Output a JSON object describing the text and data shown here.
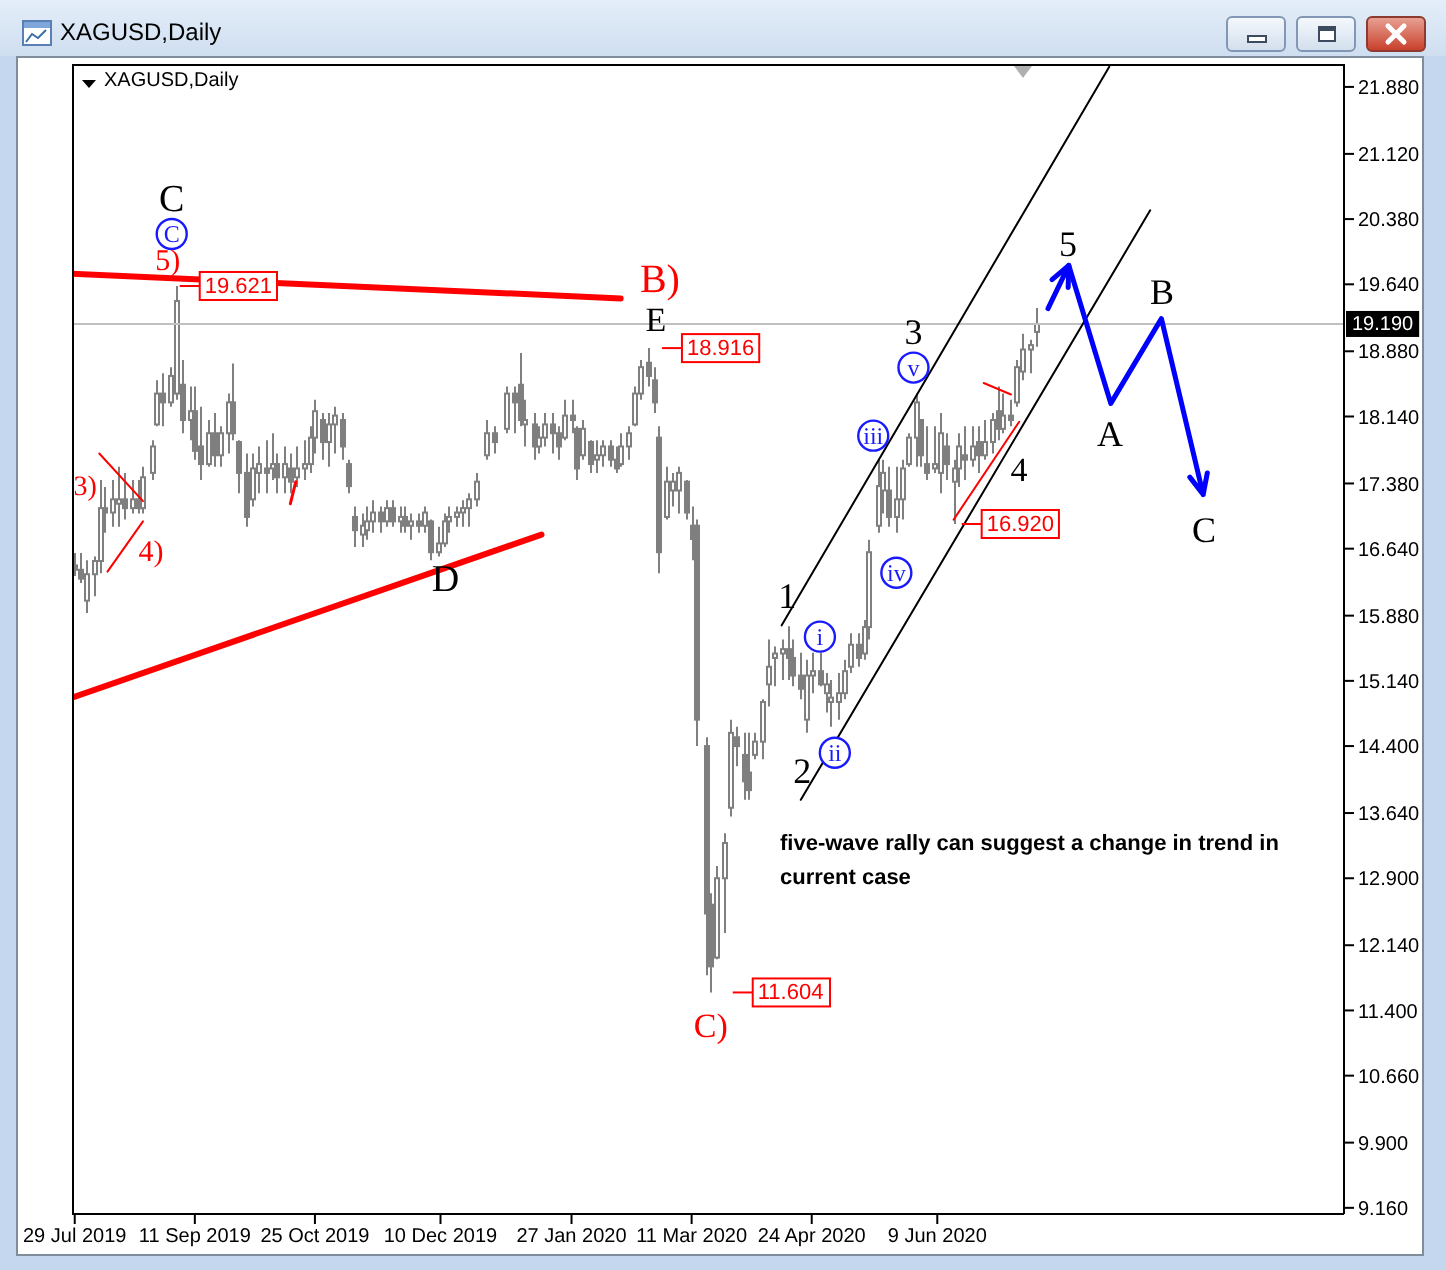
{
  "chart_data": {
    "type": "candlestick",
    "title": "XAGUSD,Daily",
    "subtitle": "XAGUSD,Daily",
    "color": "#7f7f7f",
    "x": [
      "2019-07-29",
      "2019-07-31",
      "2019-08-02",
      "2019-08-05",
      "2019-08-07",
      "2019-08-09",
      "2019-08-12",
      "2019-08-14",
      "2019-08-16",
      "2019-08-19",
      "2019-08-21",
      "2019-08-23",
      "2019-08-26",
      "2019-08-28",
      "2019-08-30",
      "2019-09-02",
      "2019-09-04",
      "2019-09-06",
      "2019-09-09",
      "2019-09-11",
      "2019-09-13",
      "2019-09-16",
      "2019-09-18",
      "2019-09-20",
      "2019-09-23",
      "2019-09-25",
      "2019-09-27",
      "2019-09-30",
      "2019-10-02",
      "2019-10-04",
      "2019-10-07",
      "2019-10-09",
      "2019-10-11",
      "2019-10-14",
      "2019-10-16",
      "2019-10-18",
      "2019-10-21",
      "2019-10-23",
      "2019-10-25",
      "2019-10-28",
      "2019-10-30",
      "2019-11-01",
      "2019-11-04",
      "2019-11-06",
      "2019-11-08",
      "2019-11-11",
      "2019-11-13",
      "2019-11-15",
      "2019-11-18",
      "2019-11-20",
      "2019-11-22",
      "2019-11-25",
      "2019-11-27",
      "2019-11-29",
      "2019-12-02",
      "2019-12-04",
      "2019-12-06",
      "2019-12-09",
      "2019-12-11",
      "2019-12-13",
      "2019-12-16",
      "2019-12-18",
      "2019-12-20",
      "2019-12-23",
      "2019-12-27",
      "2019-12-30",
      "2020-01-03",
      "2020-01-06",
      "2020-01-08",
      "2020-01-10",
      "2020-01-13",
      "2020-01-15",
      "2020-01-17",
      "2020-01-20",
      "2020-01-22",
      "2020-01-24",
      "2020-01-27",
      "2020-01-29",
      "2020-01-31",
      "2020-02-03",
      "2020-02-05",
      "2020-02-07",
      "2020-02-10",
      "2020-02-12",
      "2020-02-14",
      "2020-02-17",
      "2020-02-19",
      "2020-02-21",
      "2020-02-24",
      "2020-02-26",
      "2020-02-28",
      "2020-03-02",
      "2020-03-04",
      "2020-03-06",
      "2020-03-09",
      "2020-03-11",
      "2020-03-13",
      "2020-03-16",
      "2020-03-18",
      "2020-03-20",
      "2020-03-23",
      "2020-03-25",
      "2020-03-27",
      "2020-03-30",
      "2020-04-01",
      "2020-04-03",
      "2020-04-06",
      "2020-04-08",
      "2020-04-10",
      "2020-04-13",
      "2020-04-15",
      "2020-04-17",
      "2020-04-20",
      "2020-04-22",
      "2020-04-24",
      "2020-04-27",
      "2020-04-29",
      "2020-05-01",
      "2020-05-04",
      "2020-05-06",
      "2020-05-08",
      "2020-05-11",
      "2020-05-13",
      "2020-05-15",
      "2020-05-18",
      "2020-05-20",
      "2020-05-22",
      "2020-05-25",
      "2020-05-27",
      "2020-05-29",
      "2020-06-01",
      "2020-06-03",
      "2020-06-05",
      "2020-06-08",
      "2020-06-10",
      "2020-06-12",
      "2020-06-15",
      "2020-06-17",
      "2020-06-19",
      "2020-06-22",
      "2020-06-24",
      "2020-06-26",
      "2020-06-29",
      "2020-07-01",
      "2020-07-03",
      "2020-07-06",
      "2020-07-08",
      "2020-07-10",
      "2020-07-13",
      "2020-07-15"
    ],
    "ohlc": [
      [
        16.45,
        16.59,
        16.33,
        16.4
      ],
      [
        16.4,
        16.59,
        16.25,
        16.3
      ],
      [
        16.05,
        16.51,
        15.91,
        16.35
      ],
      [
        16.35,
        16.55,
        16.1,
        16.5
      ],
      [
        16.5,
        17.42,
        16.36,
        17.1
      ],
      [
        17.1,
        17.34,
        16.82,
        17.05
      ],
      [
        17.05,
        17.42,
        16.89,
        17.2
      ],
      [
        17.15,
        17.57,
        16.89,
        17.2
      ],
      [
        17.2,
        17.5,
        16.97,
        17.1
      ],
      [
        17.1,
        17.42,
        17.04,
        17.2
      ],
      [
        17.2,
        17.42,
        17.04,
        17.1
      ],
      [
        17.1,
        17.57,
        17.04,
        17.45
      ],
      [
        17.5,
        17.87,
        17.42,
        17.8
      ],
      [
        18.05,
        18.55,
        18.03,
        18.4
      ],
      [
        18.4,
        18.63,
        18.03,
        18.3
      ],
      [
        18.3,
        18.7,
        18.25,
        18.6
      ],
      [
        18.4,
        19.621,
        18.33,
        19.45
      ],
      [
        18.5,
        18.78,
        17.95,
        18.1
      ],
      [
        18.1,
        18.48,
        17.87,
        18.2
      ],
      [
        18.2,
        18.48,
        17.65,
        17.75
      ],
      [
        17.8,
        18.25,
        17.42,
        17.6
      ],
      [
        17.6,
        18.1,
        17.57,
        17.95
      ],
      [
        17.95,
        18.18,
        17.57,
        17.7
      ],
      [
        17.7,
        18.03,
        17.57,
        17.95
      ],
      [
        17.95,
        18.4,
        17.72,
        18.3
      ],
      [
        18.3,
        18.74,
        17.87,
        17.95
      ],
      [
        17.85,
        17.87,
        17.27,
        17.5
      ],
      [
        17.5,
        17.72,
        16.89,
        17.0
      ],
      [
        17.2,
        17.72,
        17.12,
        17.55
      ],
      [
        17.5,
        17.8,
        17.27,
        17.6
      ],
      [
        17.55,
        17.87,
        17.27,
        17.5
      ],
      [
        17.55,
        17.95,
        17.42,
        17.6
      ],
      [
        17.6,
        17.72,
        17.27,
        17.45
      ],
      [
        17.45,
        17.8,
        17.27,
        17.6
      ],
      [
        17.55,
        17.72,
        17.27,
        17.4
      ],
      [
        17.45,
        17.8,
        17.34,
        17.55
      ],
      [
        17.55,
        17.87,
        17.42,
        17.6
      ],
      [
        17.6,
        18.03,
        17.5,
        17.9
      ],
      [
        17.9,
        18.33,
        17.72,
        18.2
      ],
      [
        18.1,
        18.18,
        17.65,
        17.85
      ],
      [
        17.85,
        18.18,
        17.57,
        18.05
      ],
      [
        18.05,
        18.25,
        17.72,
        18.15
      ],
      [
        18.1,
        18.18,
        17.65,
        17.8
      ],
      [
        17.6,
        17.65,
        17.27,
        17.35
      ],
      [
        17.0,
        17.12,
        16.66,
        16.85
      ],
      [
        16.8,
        17.04,
        16.66,
        16.9
      ],
      [
        16.85,
        17.12,
        16.74,
        16.95
      ],
      [
        16.95,
        17.19,
        16.82,
        17.05
      ],
      [
        17.05,
        17.12,
        16.82,
        16.95
      ],
      [
        16.95,
        17.19,
        16.89,
        17.1
      ],
      [
        17.1,
        17.19,
        16.89,
        16.95
      ],
      [
        16.95,
        17.12,
        16.82,
        17.0
      ],
      [
        17.0,
        17.12,
        16.82,
        16.9
      ],
      [
        16.9,
        17.04,
        16.74,
        16.95
      ],
      [
        16.95,
        17.04,
        16.82,
        16.9
      ],
      [
        16.9,
        17.12,
        16.82,
        17.05
      ],
      [
        16.95,
        16.97,
        16.51,
        16.6
      ],
      [
        16.6,
        16.89,
        16.55,
        16.7
      ],
      [
        16.7,
        17.04,
        16.66,
        16.95
      ],
      [
        16.95,
        17.12,
        16.82,
        17.0
      ],
      [
        17.0,
        17.12,
        16.89,
        17.05
      ],
      [
        17.05,
        17.19,
        16.89,
        17.1
      ],
      [
        17.1,
        17.27,
        16.89,
        17.2
      ],
      [
        17.2,
        17.5,
        17.12,
        17.4
      ],
      [
        17.7,
        18.1,
        17.65,
        17.95
      ],
      [
        17.95,
        18.03,
        17.72,
        17.85
      ],
      [
        18.0,
        18.48,
        17.95,
        18.4
      ],
      [
        18.4,
        18.48,
        17.95,
        18.3
      ],
      [
        18.5,
        18.86,
        18.03,
        18.1
      ],
      [
        18.05,
        18.33,
        17.8,
        18.1
      ],
      [
        18.05,
        18.18,
        17.65,
        17.8
      ],
      [
        17.8,
        18.03,
        17.72,
        17.9
      ],
      [
        17.9,
        18.18,
        17.8,
        18.05
      ],
      [
        18.05,
        18.18,
        17.72,
        17.95
      ],
      [
        17.95,
        18.03,
        17.65,
        17.8
      ],
      [
        17.9,
        18.33,
        17.87,
        18.15
      ],
      [
        18.15,
        18.33,
        17.95,
        18.1
      ],
      [
        18.0,
        18.03,
        17.42,
        17.55
      ],
      [
        17.7,
        18.1,
        17.65,
        18.0
      ],
      [
        17.85,
        17.87,
        17.5,
        17.6
      ],
      [
        17.65,
        17.87,
        17.5,
        17.7
      ],
      [
        17.7,
        17.87,
        17.57,
        17.8
      ],
      [
        17.8,
        17.87,
        17.57,
        17.65
      ],
      [
        17.65,
        17.8,
        17.5,
        17.55
      ],
      [
        17.6,
        17.95,
        17.57,
        17.8
      ],
      [
        17.8,
        18.03,
        17.65,
        17.95
      ],
      [
        18.05,
        18.48,
        18.03,
        18.4
      ],
      [
        18.4,
        18.78,
        18.33,
        18.7
      ],
      [
        18.75,
        18.916,
        18.48,
        18.6
      ],
      [
        18.55,
        18.7,
        18.18,
        18.3
      ],
      [
        17.9,
        18.03,
        16.36,
        16.6
      ],
      [
        17.0,
        17.57,
        16.97,
        17.4
      ],
      [
        17.3,
        17.5,
        17.12,
        17.4
      ],
      [
        17.3,
        17.57,
        17.04,
        17.5
      ],
      [
        17.4,
        17.42,
        16.97,
        17.05
      ],
      [
        16.9,
        17.12,
        16.51,
        16.75
      ],
      [
        16.9,
        16.97,
        14.4,
        14.7
      ],
      [
        14.4,
        14.5,
        11.8,
        12.5
      ],
      [
        12.6,
        12.73,
        11.604,
        11.9
      ],
      [
        12.0,
        13.04,
        11.98,
        12.9
      ],
      [
        12.9,
        13.41,
        12.28,
        13.3
      ],
      [
        13.7,
        14.7,
        13.6,
        14.55
      ],
      [
        14.5,
        14.62,
        14.17,
        14.4
      ],
      [
        14.3,
        14.55,
        13.79,
        14.0
      ],
      [
        14.1,
        14.55,
        13.79,
        13.9
      ],
      [
        14.3,
        14.55,
        14.25,
        14.45
      ],
      [
        14.45,
        14.93,
        14.25,
        14.9
      ],
      [
        15.1,
        15.61,
        14.85,
        15.3
      ],
      [
        15.4,
        15.53,
        15.08,
        15.45
      ],
      [
        15.45,
        15.61,
        15.15,
        15.5
      ],
      [
        15.5,
        15.76,
        15.15,
        15.4
      ],
      [
        15.4,
        15.61,
        15.08,
        15.2
      ],
      [
        15.2,
        15.46,
        14.93,
        15.05
      ],
      [
        14.7,
        15.38,
        14.55,
        15.2
      ],
      [
        15.2,
        15.46,
        15.0,
        15.25
      ],
      [
        15.25,
        15.46,
        15.08,
        15.1
      ],
      [
        15.0,
        15.23,
        14.78,
        15.1
      ],
      [
        14.9,
        15.15,
        14.62,
        14.95
      ],
      [
        14.9,
        15.23,
        14.7,
        15.0
      ],
      [
        15.0,
        15.38,
        14.93,
        15.25
      ],
      [
        15.3,
        15.68,
        15.23,
        15.55
      ],
      [
        15.55,
        15.68,
        15.3,
        15.4
      ],
      [
        15.45,
        15.83,
        15.38,
        15.75
      ],
      [
        15.75,
        16.74,
        15.61,
        16.6
      ],
      [
        16.9,
        17.65,
        16.82,
        17.35
      ],
      [
        17.3,
        17.65,
        17.04,
        17.5
      ],
      [
        17.3,
        17.57,
        16.89,
        17.0
      ],
      [
        17.0,
        17.57,
        16.82,
        17.2
      ],
      [
        17.2,
        17.65,
        16.97,
        17.55
      ],
      [
        17.6,
        17.95,
        17.57,
        17.9
      ],
      [
        17.9,
        18.4,
        17.57,
        18.3
      ],
      [
        18.1,
        18.1,
        17.57,
        17.7
      ],
      [
        17.6,
        18.03,
        17.42,
        17.5
      ],
      [
        17.55,
        18.03,
        17.5,
        17.6
      ],
      [
        17.5,
        18.18,
        17.27,
        17.95
      ],
      [
        17.8,
        17.95,
        17.42,
        17.6
      ],
      [
        17.4,
        17.65,
        16.92,
        17.55
      ],
      [
        17.55,
        17.95,
        17.34,
        17.8
      ],
      [
        17.7,
        18.03,
        17.42,
        17.65
      ],
      [
        17.65,
        18.03,
        17.57,
        17.8
      ],
      [
        17.85,
        18.03,
        17.5,
        17.7
      ],
      [
        17.7,
        18.1,
        17.65,
        17.85
      ],
      [
        17.85,
        18.18,
        17.72,
        18.1
      ],
      [
        18.2,
        18.48,
        17.87,
        18.0
      ],
      [
        18.0,
        18.4,
        17.95,
        18.15
      ],
      [
        18.15,
        18.33,
        18.03,
        18.1
      ],
      [
        18.3,
        18.78,
        18.25,
        18.7
      ],
      [
        18.65,
        19.08,
        18.55,
        18.9
      ],
      [
        18.9,
        19.01,
        18.63,
        18.95
      ],
      [
        19.1,
        19.37,
        18.93,
        19.19
      ]
    ],
    "series": [
      {
        "type": "line",
        "color": "#ff0000",
        "x": [
          "2019-07-28",
          "2020-02-14"
        ],
        "values": [
          19.76,
          19.48
        ]
      },
      {
        "type": "line",
        "color": "#ff0000",
        "x": [
          "2019-07-28",
          "2020-01-16"
        ],
        "values": [
          14.95,
          16.8
        ]
      },
      {
        "type": "line",
        "color": "#ff0000",
        "x": [
          "2019-08-07",
          "2019-08-23"
        ],
        "values": [
          17.72,
          17.18
        ]
      },
      {
        "type": "line",
        "color": "#ff0000",
        "x": [
          "2019-08-10",
          "2019-08-23"
        ],
        "values": [
          16.38,
          16.95
        ]
      },
      {
        "type": "line",
        "color": "#ff0000",
        "x": [
          "2019-10-16",
          "2019-10-18"
        ],
        "values": [
          17.15,
          17.4
        ]
      },
      {
        "type": "line",
        "color": "#000000",
        "x": [
          "2020-04-13",
          "2020-08-11"
        ],
        "values": [
          15.77,
          22.11
        ]
      },
      {
        "type": "line",
        "color": "#000000",
        "x": [
          "2020-04-20",
          "2020-08-26"
        ],
        "values": [
          13.79,
          20.48
        ]
      },
      {
        "type": "line",
        "color": "#ff0000",
        "x": [
          "2020-06-15",
          "2020-07-09"
        ],
        "values": [
          16.97,
          18.08
        ]
      },
      {
        "type": "line",
        "color": "#ff0000",
        "x": [
          "2020-06-26",
          "2020-07-06"
        ],
        "values": [
          18.52,
          18.39
        ]
      }
    ],
    "annotations": [
      {
        "text": "C",
        "x": "2019-09-04",
        "y": 19.621
      },
      {
        "text": "C",
        "x": "2019-09-04",
        "y": 19.621
      },
      {
        "text": "5)",
        "x": "2019-09-04",
        "y": 19.621
      },
      {
        "text": "19.621",
        "x": "2019-09-04",
        "y": 19.621
      },
      {
        "text": "3)",
        "x": "2019-08-07",
        "y": 17.42
      },
      {
        "text": "4)",
        "x": "2019-08-23",
        "y": 17.04
      },
      {
        "text": "D",
        "x": "2019-12-06",
        "y": 16.51
      },
      {
        "text": "B)",
        "x": "2020-02-24",
        "y": 18.916
      },
      {
        "text": "E",
        "x": "2020-02-24",
        "y": 18.916
      },
      {
        "text": "18.916",
        "x": "2020-02-24",
        "y": 18.916
      },
      {
        "text": "C)",
        "x": "2020-03-18",
        "y": 11.604
      },
      {
        "text": "11.604",
        "x": "2020-03-18",
        "y": 11.604
      },
      {
        "text": "1",
        "x": "2020-04-15",
        "y": 15.76
      },
      {
        "text": "i",
        "x": "2020-04-27",
        "y": 15.46
      },
      {
        "text": "2",
        "x": "2020-04-22",
        "y": 14.55
      },
      {
        "text": "ii",
        "x": "2020-05-01",
        "y": 14.62
      },
      {
        "text": "iii",
        "x": "2020-05-18",
        "y": 17.65
      },
      {
        "text": "iv",
        "x": "2020-05-25",
        "y": 16.82
      },
      {
        "text": "3",
        "x": "2020-06-01",
        "y": 18.4
      },
      {
        "text": "v",
        "x": "2020-06-01",
        "y": 18.4
      },
      {
        "text": "4",
        "x": "2020-07-06",
        "y": 18.03
      },
      {
        "text": "16.920",
        "x": "2020-06-15",
        "y": 16.92
      },
      "5",
      "A",
      "B",
      "C",
      "five-wave rally can suggest a change in trend in current case"
    ],
    "ref_lines": [
      {
        "axis": "y",
        "value": 19.19,
        "label": "19.190",
        "color": "#c0c0c0"
      }
    ],
    "xlim": [
      "2019-07-28",
      "2020-11-05"
    ],
    "xticks": [
      {
        "value": "2019-07-29",
        "label": "29 Jul 2019"
      },
      {
        "value": "2019-09-11",
        "label": "11 Sep 2019"
      },
      {
        "value": "2019-10-25",
        "label": "25 Oct 2019"
      },
      {
        "value": "2019-12-10",
        "label": "10 Dec 2019"
      },
      {
        "value": "2020-01-27",
        "label": "27 Jan 2020"
      },
      {
        "value": "2020-03-11",
        "label": "11 Mar 2020"
      },
      {
        "value": "2020-04-24",
        "label": "24 Apr 2020"
      },
      {
        "value": "2020-06-09",
        "label": "9 Jun 2020"
      }
    ],
    "ylim": [
      9.09,
      22.14
    ],
    "yticks": [
      {
        "value": 21.88,
        "label": "21.880"
      },
      {
        "value": 21.12,
        "label": "21.120"
      },
      {
        "value": 20.38,
        "label": "20.380"
      },
      {
        "value": 19.64,
        "label": "19.640"
      },
      {
        "value": 18.88,
        "label": "18.880"
      },
      {
        "value": 18.14,
        "label": "18.140"
      },
      {
        "value": 17.38,
        "label": "17.380"
      },
      {
        "value": 16.64,
        "label": "16.640"
      },
      {
        "value": 15.88,
        "label": "15.880"
      },
      {
        "value": 15.14,
        "label": "15.140"
      },
      {
        "value": 14.4,
        "label": "14.400"
      },
      {
        "value": 13.64,
        "label": "13.640"
      },
      {
        "value": 12.9,
        "label": "12.900"
      },
      {
        "value": 12.14,
        "label": "12.140"
      },
      {
        "value": 11.4,
        "label": "11.400"
      },
      {
        "value": 10.66,
        "label": "10.660"
      },
      {
        "value": 9.9,
        "label": "9.900"
      },
      {
        "value": 9.16,
        "label": "9.160"
      }
    ]
  }
}
